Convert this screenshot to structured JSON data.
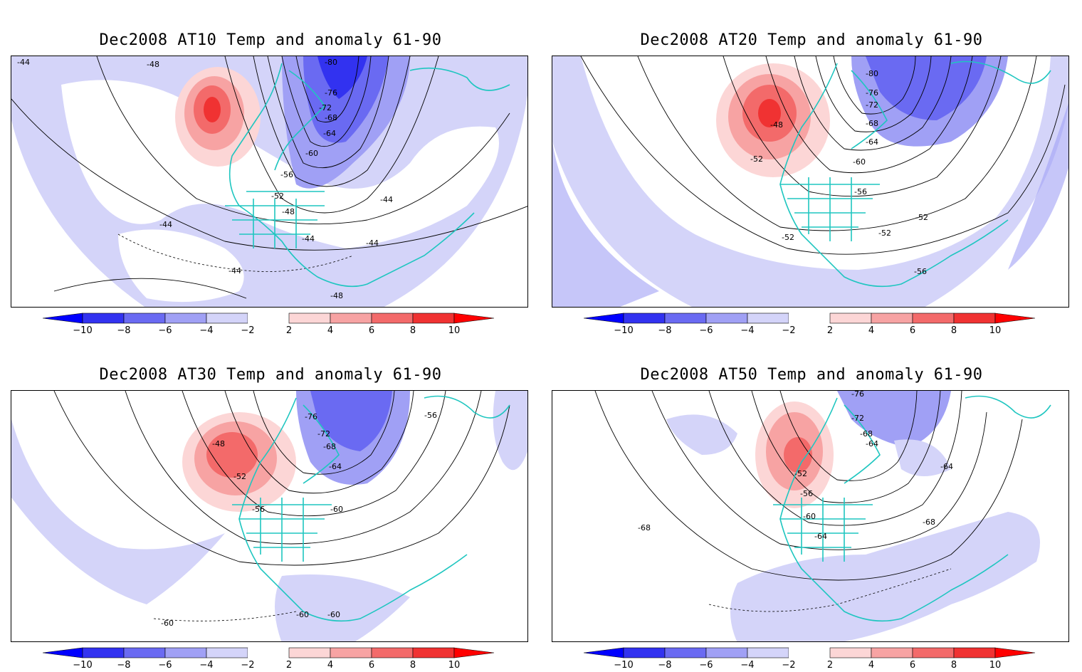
{
  "figure": {
    "panels": [
      {
        "title": "Dec2008 AT10 Temp and anomaly 61-90",
        "contour_labels": [
          "-44",
          "-48",
          "-80",
          "-76",
          "-72",
          "-68",
          "-64",
          "-60",
          "-56",
          "-52",
          "-48",
          "-44",
          "-44",
          "-44",
          "-44",
          "-44",
          "-48"
        ],
        "level": "AT10"
      },
      {
        "title": "Dec2008 AT20 Temp and anomaly 61-90",
        "contour_labels": [
          "-80",
          "-76",
          "-72",
          "-68",
          "-64",
          "-60",
          "-48",
          "-52",
          "-56",
          "-52",
          "-52",
          "-52",
          "-56"
        ],
        "level": "AT20"
      },
      {
        "title": "Dec2008 AT30 Temp and anomaly 61-90",
        "contour_labels": [
          "-76",
          "-72",
          "-68",
          "-64",
          "-48",
          "-52",
          "-56",
          "-60",
          "-56",
          "-60",
          "-60",
          "-60"
        ],
        "level": "AT30"
      },
      {
        "title": "Dec2008 AT50 Temp and anomaly 61-90",
        "contour_labels": [
          "-76",
          "-72",
          "-68",
          "-64",
          "-52",
          "-56",
          "-60",
          "-64",
          "-64",
          "-68",
          "-68"
        ],
        "level": "AT50"
      }
    ],
    "colorbar": {
      "tick_labels": [
        "−10",
        "−8",
        "−6",
        "−4",
        "−2",
        "2",
        "4",
        "6",
        "8",
        "10"
      ],
      "bins": [
        {
          "from": -10,
          "to": -8,
          "color": "#3232f0"
        },
        {
          "from": -8,
          "to": -6,
          "color": "#6a6af2"
        },
        {
          "from": -6,
          "to": -4,
          "color": "#a0a0f5"
        },
        {
          "from": -4,
          "to": -2,
          "color": "#d4d4f9"
        },
        {
          "from": -2,
          "to": 2,
          "color": "#ffffff"
        },
        {
          "from": 2,
          "to": 4,
          "color": "#fcd6d6"
        },
        {
          "from": 4,
          "to": 6,
          "color": "#f7a3a3"
        },
        {
          "from": 6,
          "to": 8,
          "color": "#f36a6a"
        },
        {
          "from": 8,
          "to": 10,
          "color": "#f03232"
        }
      ],
      "below_color": "#0000ff",
      "above_color": "#ff0000"
    },
    "colors": {
      "coastline": "#1fc6c0",
      "contour": "#000000",
      "grid": "#b0b0b0"
    }
  }
}
